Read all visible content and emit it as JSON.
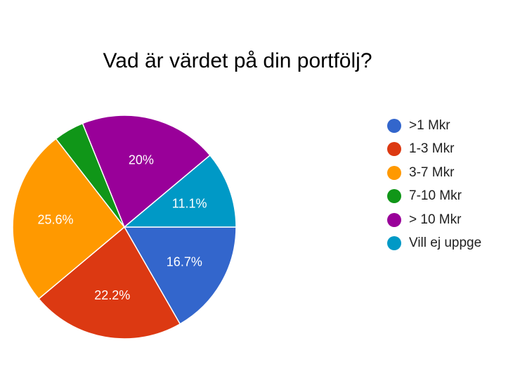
{
  "chart_data": {
    "type": "pie",
    "title": "Vad är värdet på din portfölj?",
    "categories": [
      ">1 Mkr",
      "1-3 Mkr",
      "3-7 Mkr",
      "7-10 Mkr",
      "> 10 Mkr",
      "Vill ej uppge"
    ],
    "values": [
      16.7,
      22.2,
      25.6,
      4.4,
      20,
      11.1
    ],
    "data_labels": [
      "16.7%",
      "22.2%",
      "25.6%",
      "",
      "20%",
      "11.1%"
    ],
    "colors": [
      "#3366cc",
      "#dc3912",
      "#ff9900",
      "#109618",
      "#990099",
      "#0099c6"
    ],
    "legend_position": "right"
  }
}
